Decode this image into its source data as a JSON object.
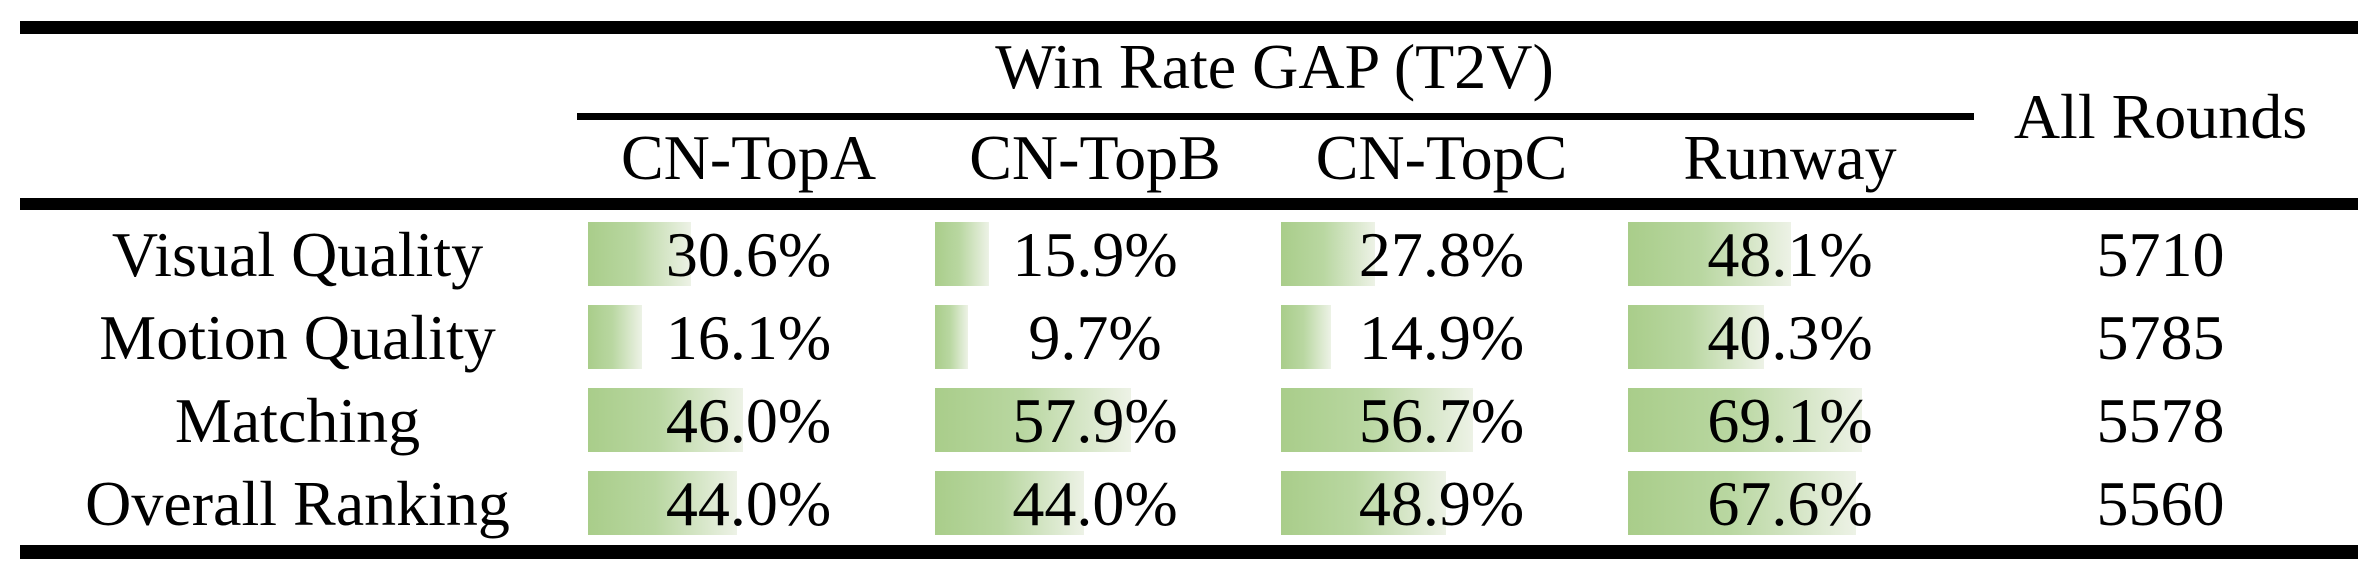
{
  "table": {
    "title": "Win Rate GAP (T2V)",
    "all_rounds_header": "All Rounds",
    "group_columns": [
      "CN-TopA",
      "CN-TopB",
      "CN-TopC",
      "Runway"
    ],
    "rows": [
      {
        "label": "Visual Quality",
        "cells": [
          {
            "pct": 30.6,
            "text": "30.6%"
          },
          {
            "pct": 15.9,
            "text": "15.9%"
          },
          {
            "pct": 27.8,
            "text": "27.8%"
          },
          {
            "pct": 48.1,
            "text": "48.1%"
          }
        ],
        "all_rounds": "5710"
      },
      {
        "label": "Motion Quality",
        "cells": [
          {
            "pct": 16.1,
            "text": "16.1%"
          },
          {
            "pct": 9.7,
            "text": "9.7%"
          },
          {
            "pct": 14.9,
            "text": "14.9%"
          },
          {
            "pct": 40.3,
            "text": "40.3%"
          }
        ],
        "all_rounds": "5785"
      },
      {
        "label": "Matching",
        "cells": [
          {
            "pct": 46.0,
            "text": "46.0%"
          },
          {
            "pct": 57.9,
            "text": "57.9%"
          },
          {
            "pct": 56.7,
            "text": "56.7%"
          },
          {
            "pct": 69.1,
            "text": "69.1%"
          }
        ],
        "all_rounds": "5578"
      },
      {
        "label": "Overall Ranking",
        "cells": [
          {
            "pct": 44.0,
            "text": "44.0%"
          },
          {
            "pct": 44.0,
            "text": "44.0%"
          },
          {
            "pct": 48.9,
            "text": "48.9%"
          },
          {
            "pct": 67.6,
            "text": "67.6%"
          }
        ],
        "all_rounds": "5560"
      }
    ],
    "colors": {
      "bar_gradient_start": "#a9cd8a",
      "bar_gradient_mid": "#b9d7a1",
      "bar_gradient_end": "#edf2e6",
      "rule_color": "#000000",
      "text_color": "#000000"
    }
  },
  "chart_data": {
    "type": "table",
    "title": "Win Rate GAP (T2V)",
    "columns": [
      "CN-TopA",
      "CN-TopB",
      "CN-TopC",
      "Runway",
      "All Rounds"
    ],
    "row_labels": [
      "Visual Quality",
      "Motion Quality",
      "Matching",
      "Overall Ranking"
    ],
    "series": [
      {
        "name": "CN-TopA",
        "values": [
          30.6,
          16.1,
          46.0,
          44.0
        ]
      },
      {
        "name": "CN-TopB",
        "values": [
          15.9,
          9.7,
          57.9,
          44.0
        ]
      },
      {
        "name": "CN-TopC",
        "values": [
          27.8,
          14.9,
          56.7,
          48.9
        ]
      },
      {
        "name": "Runway",
        "values": [
          48.1,
          40.3,
          69.1,
          67.6
        ]
      }
    ],
    "all_rounds": [
      5710,
      5785,
      5578,
      5560
    ],
    "value_unit": "%",
    "bar_scale": "green data bars proportional to percentage, 100% = full column width",
    "legend_position": "none",
    "grid": false
  }
}
